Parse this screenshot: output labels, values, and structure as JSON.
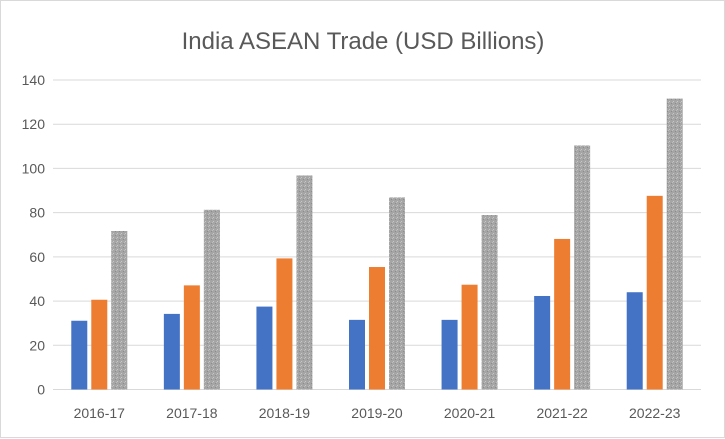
{
  "chart_data": {
    "type": "bar",
    "title": "India ASEAN Trade (USD Billions)",
    "xlabel": "",
    "ylabel": "",
    "categories": [
      "2016-17",
      "2017-18",
      "2018-19",
      "2019-20",
      "2020-21",
      "2021-22",
      "2022-23"
    ],
    "series": [
      {
        "values": [
          31.1,
          34.2,
          37.5,
          31.5,
          31.5,
          42.3,
          44.0
        ],
        "color": "#4472c4"
      },
      {
        "values": [
          40.6,
          47.1,
          59.3,
          55.4,
          47.4,
          68.1,
          87.6
        ],
        "color": "#ed7d31"
      },
      {
        "values": [
          71.7,
          81.3,
          96.8,
          86.9,
          78.9,
          110.4,
          131.6
        ],
        "color": "#a5a5a5",
        "pattern": "stippled"
      }
    ],
    "ylim": [
      0,
      140
    ],
    "yticks": [
      0,
      20,
      40,
      60,
      80,
      100,
      120,
      140
    ],
    "grid": true,
    "legend": "none"
  }
}
